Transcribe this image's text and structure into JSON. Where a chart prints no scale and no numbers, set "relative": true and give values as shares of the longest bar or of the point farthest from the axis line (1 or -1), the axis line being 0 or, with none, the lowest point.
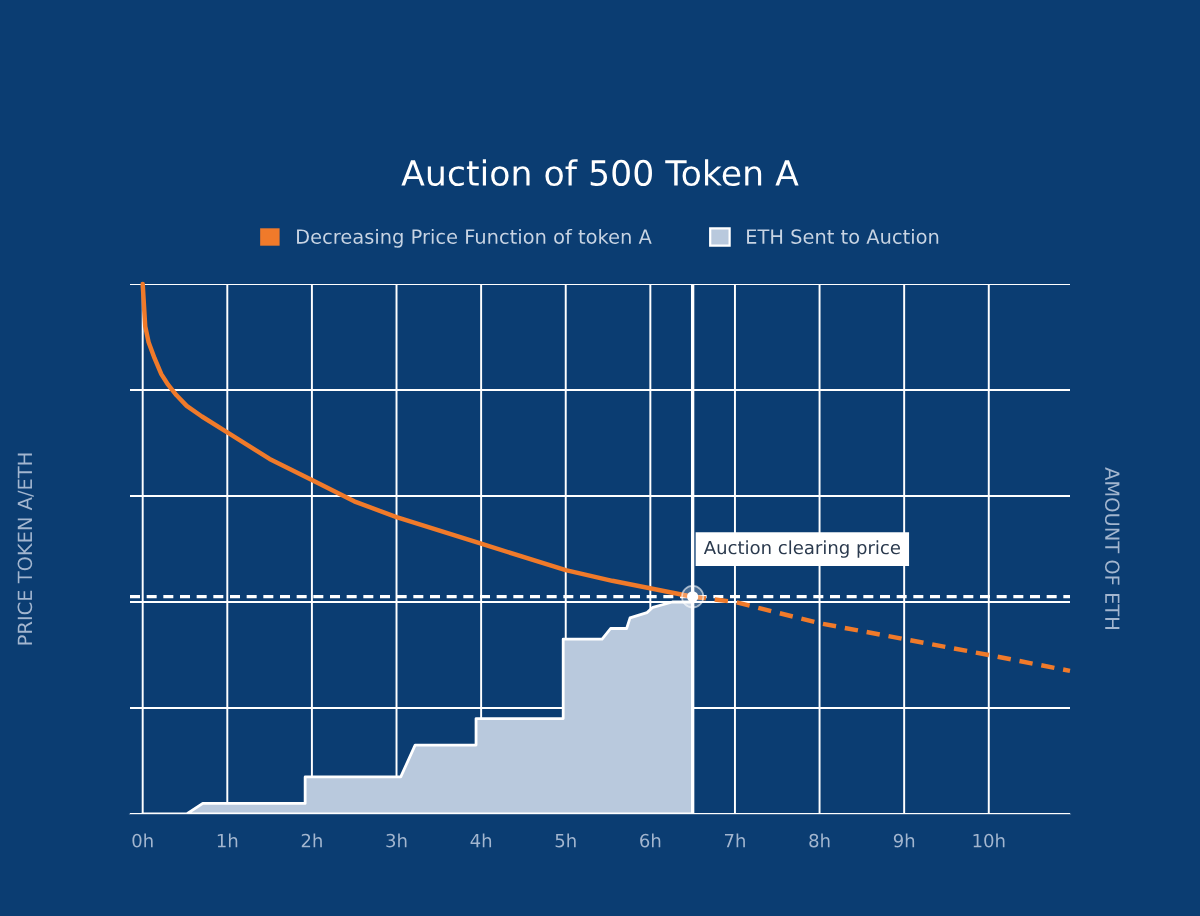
{
  "chart_data": {
    "type": "line",
    "title": "Auction of 500 Token A",
    "ylabel": "PRICE TOKEN A/ETH",
    "y2label": "AMOUNT OF ETH",
    "relative": true,
    "tick_labels": "x",
    "xlim": [
      -0.15,
      10.96
    ],
    "xticks": [
      {
        "value": 0,
        "label": "0h"
      },
      {
        "value": 1,
        "label": "1h"
      },
      {
        "value": 2,
        "label": "2h"
      },
      {
        "value": 3,
        "label": "3h"
      },
      {
        "value": 4,
        "label": "4h"
      },
      {
        "value": 5,
        "label": "5h"
      },
      {
        "value": 6,
        "label": "6h"
      },
      {
        "value": 7,
        "label": "7h"
      },
      {
        "value": 8,
        "label": "8h"
      },
      {
        "value": 9,
        "label": "9h"
      },
      {
        "value": 10,
        "label": "10h"
      }
    ],
    "grid": true,
    "legend": "top",
    "series": [
      {
        "name": "Decreasing Price Function of token A",
        "color": "#f07a2a",
        "line_style": "solid",
        "x": [
          0,
          0.03,
          0.07,
          0.14,
          0.22,
          0.3,
          0.4,
          0.52,
          0.7,
          1,
          1.5,
          2,
          2.5,
          3,
          4,
          5,
          5.55,
          6.5
        ],
        "values": [
          1,
          0.92,
          0.89,
          0.86,
          0.83,
          0.81,
          0.79,
          0.77,
          0.75,
          0.72,
          0.67,
          0.63,
          0.59,
          0.56,
          0.51,
          0.46,
          0.44,
          0.41
        ]
      },
      {
        "type": "line",
        "color": "#f07a2a",
        "line_style": "dashed",
        "x": [
          6.5,
          7,
          8,
          9,
          10,
          10.96
        ],
        "values": [
          0.41,
          0.4,
          0.36,
          0.33,
          0.3,
          0.27
        ]
      },
      {
        "name": "ETH Sent to Auction",
        "type": "area",
        "color": "#b9c9dd",
        "x": [
          0,
          0.52,
          0.71,
          1.92,
          1.92,
          3.05,
          3.22,
          3.94,
          3.94,
          4.97,
          4.97,
          5.43,
          5.53,
          5.72,
          5.76,
          5.96,
          6.03,
          6.26,
          6.5,
          6.5
        ],
        "values": [
          0,
          0,
          0.02,
          0.02,
          0.07,
          0.07,
          0.13,
          0.13,
          0.18,
          0.18,
          0.33,
          0.33,
          0.35,
          0.35,
          0.37,
          0.38,
          0.39,
          0.4,
          0.4,
          0
        ]
      }
    ],
    "ref_lines": [
      {
        "axis": "y",
        "value": 0.41,
        "color": "#ffffff",
        "line_style": "dashed"
      },
      {
        "axis": "x",
        "value": 6.5,
        "color": "#ffffff",
        "line_style": "solid"
      }
    ],
    "annotations": [
      {
        "text": "Auction clearing price",
        "x": 6.5,
        "y": 0.41
      }
    ]
  }
}
